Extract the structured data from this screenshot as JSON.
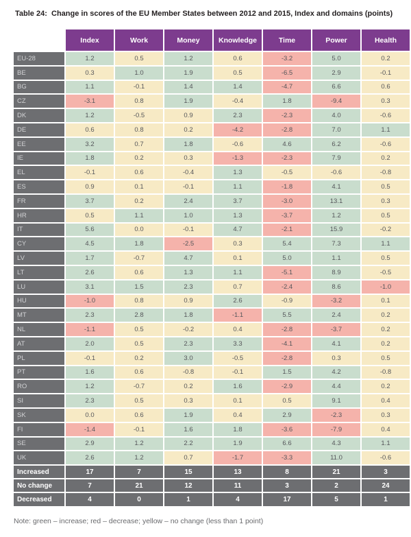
{
  "title": {
    "label": "Table 24:",
    "caption": "Change in scores of the EU Member States between 2012 and 2015, Index and domains (points)"
  },
  "note": "Note: green – increase; red – decrease; yellow – no change (less than 1 point)",
  "colors": {
    "header_bg": "#7d3c8e",
    "row_label_bg": "#6d6e71",
    "summary_bg": "#6d6e71",
    "green": "#c9ddcd",
    "yellow": "#f7eac5",
    "red": "#f5b3ab",
    "green_meaning": "increase",
    "red_meaning": "decrease",
    "yellow_meaning": "no change (less than 1 point)"
  },
  "chart_data": {
    "type": "table",
    "title": "Table 24: Change in scores of the EU Member States between 2012 and 2015, Index and domains (points)",
    "columns": [
      "Index",
      "Work",
      "Money",
      "Knowledge",
      "Time",
      "Power",
      "Health"
    ],
    "rows": [
      {
        "label": "EU-28",
        "values": [
          "1.2",
          "0.5",
          "1.2",
          "0.6",
          "-3.2",
          "5.0",
          "0.2"
        ],
        "colors": [
          "g",
          "y",
          "g",
          "y",
          "r",
          "g",
          "y"
        ]
      },
      {
        "label": "BE",
        "values": [
          "0.3",
          "1.0",
          "1.9",
          "0.5",
          "-6.5",
          "2.9",
          "-0.1"
        ],
        "colors": [
          "y",
          "g",
          "g",
          "y",
          "r",
          "g",
          "y"
        ]
      },
      {
        "label": "BG",
        "values": [
          "1.1",
          "-0.1",
          "1.4",
          "1.4",
          "-4.7",
          "6.6",
          "0.6"
        ],
        "colors": [
          "g",
          "y",
          "g",
          "g",
          "r",
          "g",
          "y"
        ]
      },
      {
        "label": "CZ",
        "values": [
          "-3.1",
          "0.8",
          "1.9",
          "-0.4",
          "1.8",
          "-9.4",
          "0.3"
        ],
        "colors": [
          "r",
          "y",
          "g",
          "y",
          "g",
          "r",
          "y"
        ]
      },
      {
        "label": "DK",
        "values": [
          "1.2",
          "-0.5",
          "0.9",
          "2.3",
          "-2.3",
          "4.0",
          "-0.6"
        ],
        "colors": [
          "g",
          "y",
          "y",
          "g",
          "r",
          "g",
          "y"
        ]
      },
      {
        "label": "DE",
        "values": [
          "0.6",
          "0.8",
          "0.2",
          "-4.2",
          "-2.8",
          "7.0",
          "1.1"
        ],
        "colors": [
          "y",
          "y",
          "y",
          "r",
          "r",
          "g",
          "g"
        ]
      },
      {
        "label": "EE",
        "values": [
          "3.2",
          "0.7",
          "1.8",
          "-0.6",
          "4.6",
          "6.2",
          "-0.6"
        ],
        "colors": [
          "g",
          "y",
          "g",
          "y",
          "g",
          "g",
          "y"
        ]
      },
      {
        "label": "IE",
        "values": [
          "1.8",
          "0.2",
          "0.3",
          "-1.3",
          "-2.3",
          "7.9",
          "0.2"
        ],
        "colors": [
          "g",
          "y",
          "y",
          "r",
          "r",
          "g",
          "y"
        ]
      },
      {
        "label": "EL",
        "values": [
          "-0.1",
          "0.6",
          "-0.4",
          "1.3",
          "-0.5",
          "-0.6",
          "-0.8"
        ],
        "colors": [
          "y",
          "y",
          "y",
          "g",
          "y",
          "y",
          "y"
        ]
      },
      {
        "label": "ES",
        "values": [
          "0.9",
          "0.1",
          "-0.1",
          "1.1",
          "-1.8",
          "4.1",
          "0.5"
        ],
        "colors": [
          "y",
          "y",
          "y",
          "g",
          "r",
          "g",
          "y"
        ]
      },
      {
        "label": "FR",
        "values": [
          "3.7",
          "0.2",
          "2.4",
          "3.7",
          "-3.0",
          "13.1",
          "0.3"
        ],
        "colors": [
          "g",
          "y",
          "g",
          "g",
          "r",
          "g",
          "y"
        ]
      },
      {
        "label": "HR",
        "values": [
          "0.5",
          "1.1",
          "1.0",
          "1.3",
          "-3.7",
          "1.2",
          "0.5"
        ],
        "colors": [
          "y",
          "g",
          "g",
          "g",
          "r",
          "g",
          "y"
        ]
      },
      {
        "label": "IT",
        "values": [
          "5.6",
          "0.0",
          "-0.1",
          "4.7",
          "-2.1",
          "15.9",
          "-0.2"
        ],
        "colors": [
          "g",
          "y",
          "y",
          "g",
          "r",
          "g",
          "y"
        ]
      },
      {
        "label": "CY",
        "values": [
          "4.5",
          "1.8",
          "-2.5",
          "0.3",
          "5.4",
          "7.3",
          "1.1"
        ],
        "colors": [
          "g",
          "g",
          "r",
          "y",
          "g",
          "g",
          "g"
        ]
      },
      {
        "label": "LV",
        "values": [
          "1.7",
          "-0.7",
          "4.7",
          "0.1",
          "5.0",
          "1.1",
          "0.5"
        ],
        "colors": [
          "g",
          "y",
          "g",
          "y",
          "g",
          "g",
          "y"
        ]
      },
      {
        "label": "LT",
        "values": [
          "2.6",
          "0.6",
          "1.3",
          "1.1",
          "-5.1",
          "8.9",
          "-0.5"
        ],
        "colors": [
          "g",
          "y",
          "g",
          "g",
          "r",
          "g",
          "y"
        ]
      },
      {
        "label": "LU",
        "values": [
          "3.1",
          "1.5",
          "2.3",
          "0.7",
          "-2.4",
          "8.6",
          "-1.0"
        ],
        "colors": [
          "g",
          "g",
          "g",
          "y",
          "r",
          "g",
          "r"
        ]
      },
      {
        "label": "HU",
        "values": [
          "-1.0",
          "0.8",
          "0.9",
          "2.6",
          "-0.9",
          "-3.2",
          "0.1"
        ],
        "colors": [
          "r",
          "y",
          "y",
          "g",
          "y",
          "r",
          "y"
        ]
      },
      {
        "label": "MT",
        "values": [
          "2.3",
          "2.8",
          "1.8",
          "-1.1",
          "5.5",
          "2.4",
          "0.2"
        ],
        "colors": [
          "g",
          "g",
          "g",
          "r",
          "g",
          "g",
          "y"
        ]
      },
      {
        "label": "NL",
        "values": [
          "-1.1",
          "0.5",
          "-0.2",
          "0.4",
          "-2.8",
          "-3.7",
          "0.2"
        ],
        "colors": [
          "r",
          "y",
          "y",
          "y",
          "r",
          "r",
          "y"
        ]
      },
      {
        "label": "AT",
        "values": [
          "2.0",
          "0.5",
          "2.3",
          "3.3",
          "-4.1",
          "4.1",
          "0.2"
        ],
        "colors": [
          "g",
          "y",
          "g",
          "g",
          "r",
          "g",
          "y"
        ]
      },
      {
        "label": "PL",
        "values": [
          "-0.1",
          "0.2",
          "3.0",
          "-0.5",
          "-2.8",
          "0.3",
          "0.5"
        ],
        "colors": [
          "y",
          "y",
          "g",
          "y",
          "r",
          "y",
          "y"
        ]
      },
      {
        "label": "PT",
        "values": [
          "1.6",
          "0.6",
          "-0.8",
          "-0.1",
          "1.5",
          "4.2",
          "-0.8"
        ],
        "colors": [
          "g",
          "y",
          "y",
          "y",
          "g",
          "g",
          "y"
        ]
      },
      {
        "label": "RO",
        "values": [
          "1.2",
          "-0.7",
          "0.2",
          "1.6",
          "-2.9",
          "4.4",
          "0.2"
        ],
        "colors": [
          "g",
          "y",
          "y",
          "g",
          "r",
          "g",
          "y"
        ]
      },
      {
        "label": "SI",
        "values": [
          "2.3",
          "0.5",
          "0.3",
          "0.1",
          "0.5",
          "9.1",
          "0.4"
        ],
        "colors": [
          "g",
          "y",
          "y",
          "y",
          "y",
          "g",
          "y"
        ]
      },
      {
        "label": "SK",
        "values": [
          "0.0",
          "0.6",
          "1.9",
          "0.4",
          "2.9",
          "-2.3",
          "0.3"
        ],
        "colors": [
          "y",
          "y",
          "g",
          "y",
          "g",
          "r",
          "y"
        ]
      },
      {
        "label": "FI",
        "values": [
          "-1.4",
          "-0.1",
          "1.6",
          "1.8",
          "-3.6",
          "-7.9",
          "0.4"
        ],
        "colors": [
          "r",
          "y",
          "g",
          "g",
          "r",
          "r",
          "y"
        ]
      },
      {
        "label": "SE",
        "values": [
          "2.9",
          "1.2",
          "2.2",
          "1.9",
          "6.6",
          "4.3",
          "1.1"
        ],
        "colors": [
          "g",
          "g",
          "g",
          "g",
          "g",
          "g",
          "g"
        ]
      },
      {
        "label": "UK",
        "values": [
          "2.6",
          "1.2",
          "0.7",
          "-1.7",
          "-3.3",
          "11.0",
          "-0.6"
        ],
        "colors": [
          "g",
          "g",
          "y",
          "r",
          "r",
          "g",
          "y"
        ]
      }
    ],
    "summary_rows": [
      {
        "label": "Increased",
        "values": [
          "17",
          "7",
          "15",
          "13",
          "8",
          "21",
          "3"
        ]
      },
      {
        "label": "No change",
        "values": [
          "7",
          "21",
          "12",
          "11",
          "3",
          "2",
          "24"
        ]
      },
      {
        "label": "Decreased",
        "values": [
          "4",
          "0",
          "1",
          "4",
          "17",
          "5",
          "1"
        ]
      }
    ]
  }
}
